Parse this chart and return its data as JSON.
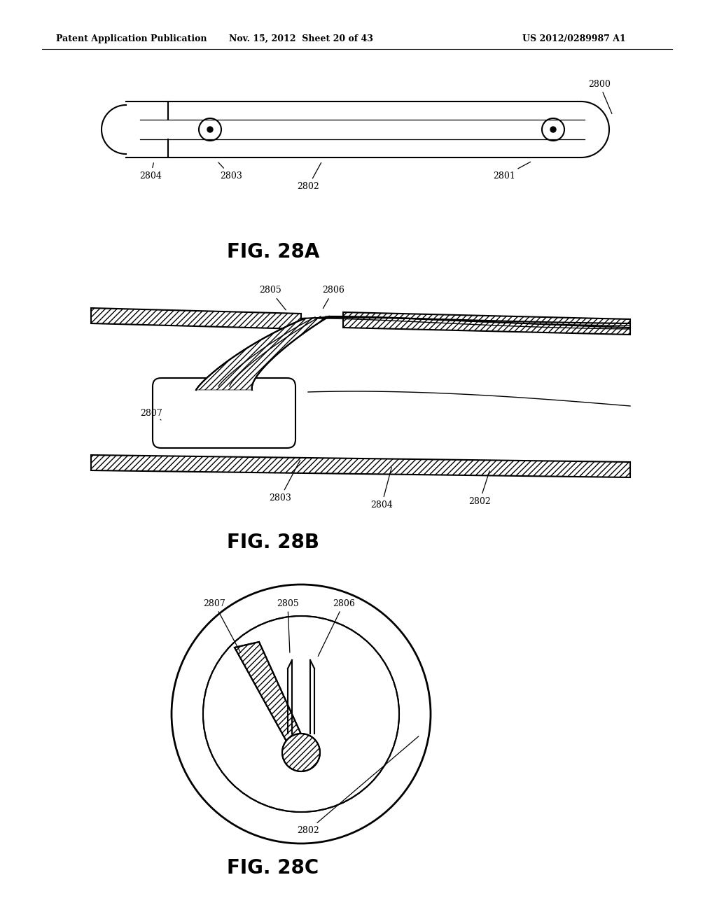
{
  "header_left": "Patent Application Publication",
  "header_middle": "Nov. 15, 2012  Sheet 20 of 43",
  "header_right": "US 2012/0289987 A1",
  "fig_a_label": "FIG. 28A",
  "fig_b_label": "FIG. 28B",
  "fig_c_label": "FIG. 28C",
  "background_color": "#ffffff",
  "line_color": "#000000"
}
